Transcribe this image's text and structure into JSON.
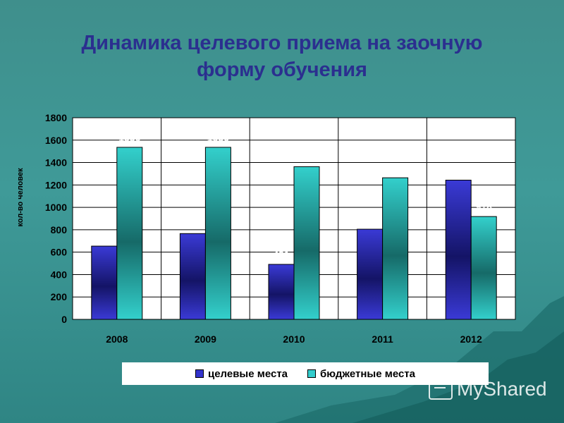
{
  "title": {
    "line1": "Динамика целевого приема на заочную",
    "line2": "форму обучения"
  },
  "watermark": "MyShared",
  "colors": {
    "series1": "#3333cc",
    "series2": "#33cccc",
    "plot_background": "#ffffff",
    "title": "#2b2f8f"
  },
  "chart_data": {
    "type": "bar",
    "ylabel": "кол-во человек",
    "xlabel": "",
    "categories": [
      "2008",
      "2009",
      "2010",
      "2011",
      "2012"
    ],
    "ylim": [
      0,
      1800
    ],
    "yticks": [
      0,
      200,
      400,
      600,
      800,
      1000,
      1200,
      1400,
      1600,
      1800
    ],
    "grid": true,
    "legend": "bottom",
    "series": [
      {
        "name": "целевые места",
        "values": [
          654,
          766,
          491,
          805,
          1243
        ]
      },
      {
        "name": "бюджетные места",
        "values": [
          1536,
          1536,
          1363,
          1264,
          918
        ]
      }
    ]
  }
}
